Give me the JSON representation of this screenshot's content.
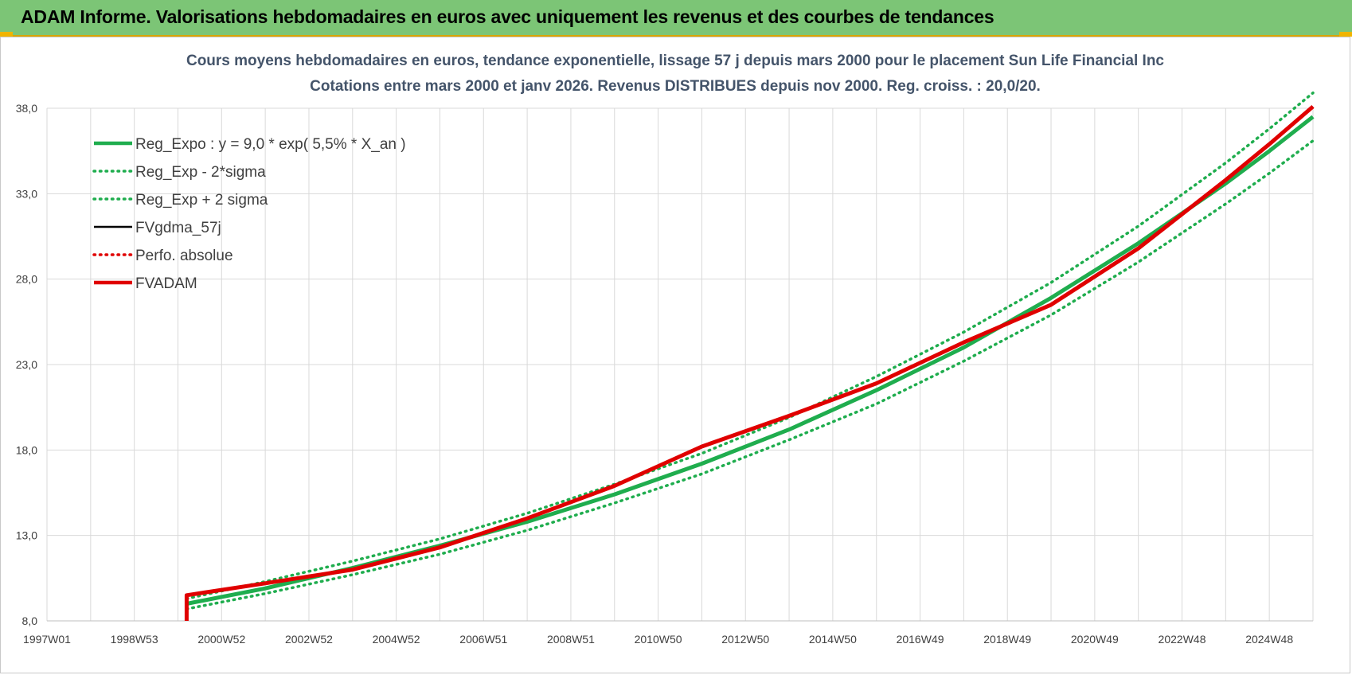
{
  "header": {
    "title": "ADAM Informe. Valorisations hebdomadaires en euros avec uniquement les revenus et des courbes de tendances"
  },
  "chart_data": {
    "type": "line",
    "title": "Cours moyens hebdomadaires en euros, tendance exponentielle, lissage 57 j depuis mars 2000 pour le placement Sun Life Financial Inc",
    "subtitle": "Cotations entre mars 2000 et janv 2026. Revenus DISTRIBUES depuis nov 2000. Reg. croiss. : 20,0/20.",
    "xlabel": "",
    "ylabel": "",
    "x_ticks": [
      "1997W01",
      "1998W53",
      "2000W52",
      "2002W52",
      "2004W52",
      "2006W51",
      "2008W51",
      "2010W50",
      "2012W50",
      "2014W50",
      "2016W49",
      "2018W49",
      "2020W49",
      "2022W48",
      "2024W48"
    ],
    "x_range": [
      1997.0,
      2026.0
    ],
    "y_ticks": [
      "8,0",
      "13,0",
      "18,0",
      "23,0",
      "28,0",
      "33,0",
      "38,0"
    ],
    "ylim": [
      8.0,
      38.0
    ],
    "grid": true,
    "legend_position": "top-left",
    "x": [
      2000.2,
      2002.0,
      2004.0,
      2006.0,
      2008.0,
      2010.0,
      2012.0,
      2014.0,
      2016.0,
      2018.0,
      2020.0,
      2022.0,
      2024.0,
      2025.0,
      2026.0
    ],
    "series": [
      {
        "name": "Reg_Expo : y = 9,0 * exp( 5,5% *  X_an )",
        "color": "#1fad4e",
        "style": "solid",
        "values": [
          9.0,
          9.9,
          11.1,
          12.4,
          13.8,
          15.4,
          17.2,
          19.2,
          21.5,
          24.0,
          26.9,
          30.1,
          33.6,
          35.5,
          37.5
        ]
      },
      {
        "name": "Reg_Exp - 2*sigma",
        "color": "#1fad4e",
        "style": "dotted",
        "values": [
          8.7,
          9.6,
          10.7,
          11.9,
          13.3,
          14.9,
          16.6,
          18.6,
          20.7,
          23.2,
          25.9,
          29.0,
          32.4,
          34.2,
          36.1
        ]
      },
      {
        "name": "Reg_Exp + 2 sigma",
        "color": "#1fad4e",
        "style": "dotted",
        "values": [
          9.3,
          10.3,
          11.5,
          12.8,
          14.3,
          16.0,
          17.8,
          19.9,
          22.3,
          24.9,
          27.8,
          31.1,
          34.8,
          36.8,
          38.9
        ]
      },
      {
        "name": "FVgdma_57j",
        "color": "#000000",
        "style": "solid",
        "values": [
          9.5,
          10.2,
          11.0,
          12.3,
          14.0,
          15.9,
          18.2,
          20.0,
          21.9,
          24.3,
          26.5,
          29.8,
          33.8,
          35.9,
          38.1
        ]
      },
      {
        "name": "Perfo. absolue",
        "color": "#e00000",
        "style": "dotted",
        "values": [
          9.5,
          10.2,
          11.0,
          12.3,
          14.0,
          15.9,
          18.2,
          20.0,
          21.9,
          24.3,
          26.5,
          29.8,
          33.8,
          35.9,
          38.1
        ]
      },
      {
        "name": "FVADAM",
        "color": "#e00000",
        "style": "solid",
        "values": [
          9.5,
          10.2,
          11.0,
          12.3,
          14.0,
          15.9,
          18.2,
          20.0,
          21.9,
          24.3,
          26.5,
          29.8,
          33.8,
          35.9,
          38.1
        ]
      }
    ]
  }
}
